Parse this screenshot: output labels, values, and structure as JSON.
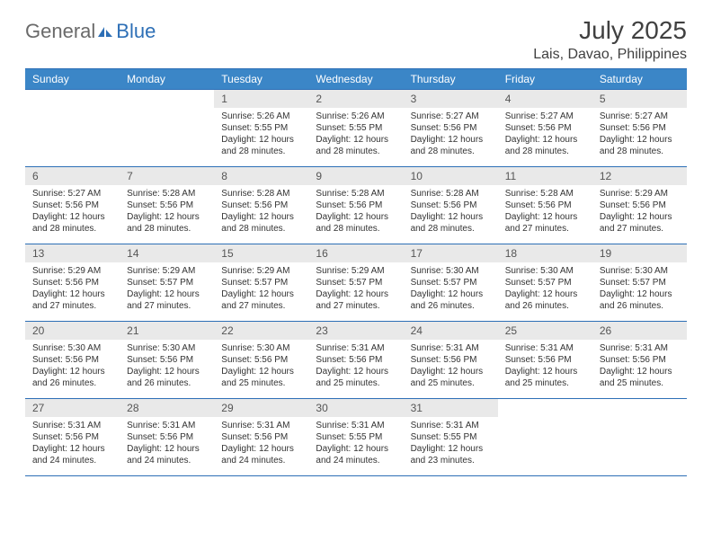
{
  "brand": {
    "general": "General",
    "blue": "Blue"
  },
  "title": "July 2025",
  "location": "Lais, Davao, Philippines",
  "colors": {
    "header_bg": "#3b86c7",
    "header_border": "#2d6fb6",
    "daynum_bg": "#e9e9e9",
    "text": "#333333",
    "title_text": "#404040"
  },
  "day_headers": [
    "Sunday",
    "Monday",
    "Tuesday",
    "Wednesday",
    "Thursday",
    "Friday",
    "Saturday"
  ],
  "weeks": [
    [
      null,
      null,
      {
        "n": "1",
        "sunrise": "5:26 AM",
        "sunset": "5:55 PM",
        "daylight": "12 hours and 28 minutes."
      },
      {
        "n": "2",
        "sunrise": "5:26 AM",
        "sunset": "5:55 PM",
        "daylight": "12 hours and 28 minutes."
      },
      {
        "n": "3",
        "sunrise": "5:27 AM",
        "sunset": "5:56 PM",
        "daylight": "12 hours and 28 minutes."
      },
      {
        "n": "4",
        "sunrise": "5:27 AM",
        "sunset": "5:56 PM",
        "daylight": "12 hours and 28 minutes."
      },
      {
        "n": "5",
        "sunrise": "5:27 AM",
        "sunset": "5:56 PM",
        "daylight": "12 hours and 28 minutes."
      }
    ],
    [
      {
        "n": "6",
        "sunrise": "5:27 AM",
        "sunset": "5:56 PM",
        "daylight": "12 hours and 28 minutes."
      },
      {
        "n": "7",
        "sunrise": "5:28 AM",
        "sunset": "5:56 PM",
        "daylight": "12 hours and 28 minutes."
      },
      {
        "n": "8",
        "sunrise": "5:28 AM",
        "sunset": "5:56 PM",
        "daylight": "12 hours and 28 minutes."
      },
      {
        "n": "9",
        "sunrise": "5:28 AM",
        "sunset": "5:56 PM",
        "daylight": "12 hours and 28 minutes."
      },
      {
        "n": "10",
        "sunrise": "5:28 AM",
        "sunset": "5:56 PM",
        "daylight": "12 hours and 28 minutes."
      },
      {
        "n": "11",
        "sunrise": "5:28 AM",
        "sunset": "5:56 PM",
        "daylight": "12 hours and 27 minutes."
      },
      {
        "n": "12",
        "sunrise": "5:29 AM",
        "sunset": "5:56 PM",
        "daylight": "12 hours and 27 minutes."
      }
    ],
    [
      {
        "n": "13",
        "sunrise": "5:29 AM",
        "sunset": "5:56 PM",
        "daylight": "12 hours and 27 minutes."
      },
      {
        "n": "14",
        "sunrise": "5:29 AM",
        "sunset": "5:57 PM",
        "daylight": "12 hours and 27 minutes."
      },
      {
        "n": "15",
        "sunrise": "5:29 AM",
        "sunset": "5:57 PM",
        "daylight": "12 hours and 27 minutes."
      },
      {
        "n": "16",
        "sunrise": "5:29 AM",
        "sunset": "5:57 PM",
        "daylight": "12 hours and 27 minutes."
      },
      {
        "n": "17",
        "sunrise": "5:30 AM",
        "sunset": "5:57 PM",
        "daylight": "12 hours and 26 minutes."
      },
      {
        "n": "18",
        "sunrise": "5:30 AM",
        "sunset": "5:57 PM",
        "daylight": "12 hours and 26 minutes."
      },
      {
        "n": "19",
        "sunrise": "5:30 AM",
        "sunset": "5:57 PM",
        "daylight": "12 hours and 26 minutes."
      }
    ],
    [
      {
        "n": "20",
        "sunrise": "5:30 AM",
        "sunset": "5:56 PM",
        "daylight": "12 hours and 26 minutes."
      },
      {
        "n": "21",
        "sunrise": "5:30 AM",
        "sunset": "5:56 PM",
        "daylight": "12 hours and 26 minutes."
      },
      {
        "n": "22",
        "sunrise": "5:30 AM",
        "sunset": "5:56 PM",
        "daylight": "12 hours and 25 minutes."
      },
      {
        "n": "23",
        "sunrise": "5:31 AM",
        "sunset": "5:56 PM",
        "daylight": "12 hours and 25 minutes."
      },
      {
        "n": "24",
        "sunrise": "5:31 AM",
        "sunset": "5:56 PM",
        "daylight": "12 hours and 25 minutes."
      },
      {
        "n": "25",
        "sunrise": "5:31 AM",
        "sunset": "5:56 PM",
        "daylight": "12 hours and 25 minutes."
      },
      {
        "n": "26",
        "sunrise": "5:31 AM",
        "sunset": "5:56 PM",
        "daylight": "12 hours and 25 minutes."
      }
    ],
    [
      {
        "n": "27",
        "sunrise": "5:31 AM",
        "sunset": "5:56 PM",
        "daylight": "12 hours and 24 minutes."
      },
      {
        "n": "28",
        "sunrise": "5:31 AM",
        "sunset": "5:56 PM",
        "daylight": "12 hours and 24 minutes."
      },
      {
        "n": "29",
        "sunrise": "5:31 AM",
        "sunset": "5:56 PM",
        "daylight": "12 hours and 24 minutes."
      },
      {
        "n": "30",
        "sunrise": "5:31 AM",
        "sunset": "5:55 PM",
        "daylight": "12 hours and 24 minutes."
      },
      {
        "n": "31",
        "sunrise": "5:31 AM",
        "sunset": "5:55 PM",
        "daylight": "12 hours and 23 minutes."
      },
      null,
      null
    ]
  ],
  "labels": {
    "sunrise": "Sunrise:",
    "sunset": "Sunset:",
    "daylight": "Daylight:"
  }
}
